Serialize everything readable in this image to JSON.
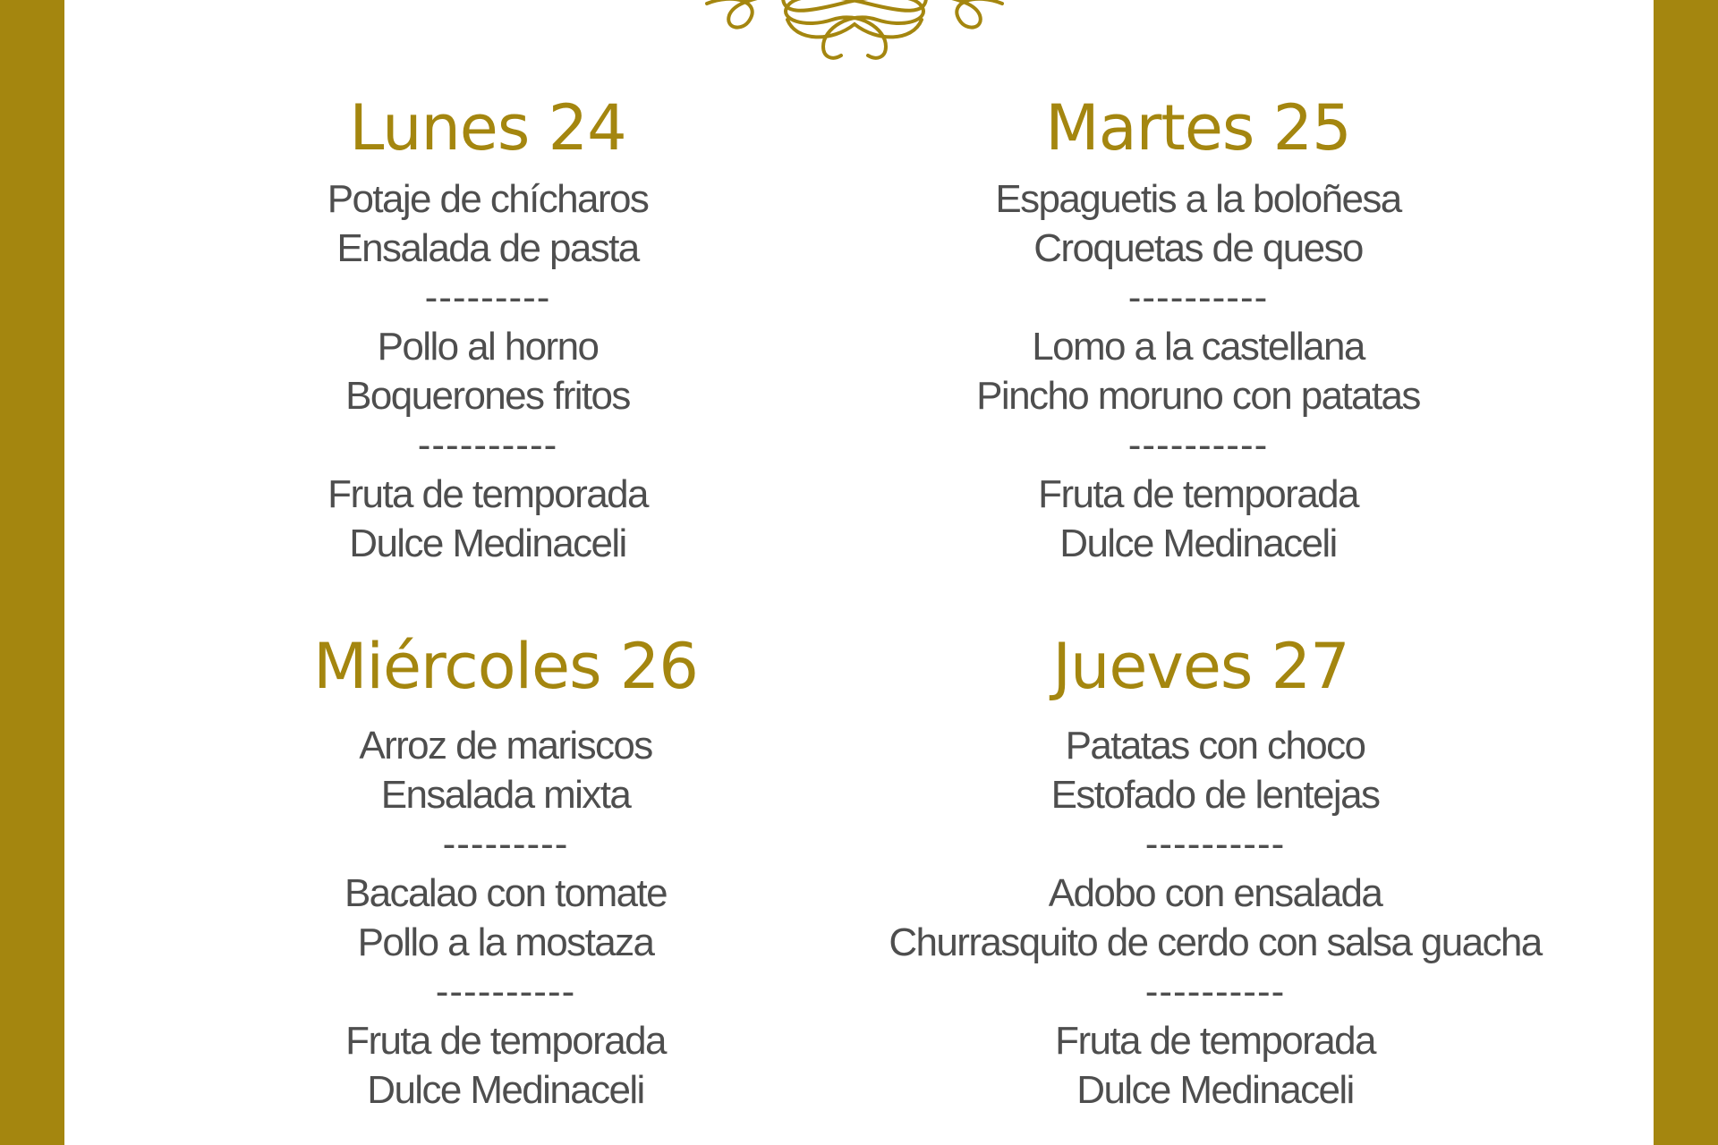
{
  "accent_color": "#A4860F",
  "ornament": "gold-flourish-ornament",
  "days": [
    {
      "title": "Lunes 24",
      "items": [
        "Potaje de chícharos",
        "Ensalada de pasta",
        "---------",
        "Pollo al horno",
        "Boquerones fritos",
        "----------",
        "Fruta de temporada",
        "Dulce Medinaceli"
      ]
    },
    {
      "title": "Martes 25",
      "items": [
        "Espaguetis a la boloñesa",
        "Croquetas de queso",
        "----------",
        "Lomo a la castellana",
        "Pincho moruno con patatas",
        "----------",
        "Fruta de temporada",
        "Dulce Medinaceli"
      ]
    },
    {
      "title": "Miércoles 26",
      "items": [
        "Arroz de mariscos",
        "Ensalada mixta",
        "---------",
        "Bacalao con tomate",
        "Pollo a la mostaza",
        "----------",
        "Fruta de temporada",
        "Dulce Medinaceli"
      ]
    },
    {
      "title": "Jueves 27",
      "items": [
        "Patatas con choco",
        "Estofado de lentejas",
        "----------",
        "Adobo con ensalada",
        "Churrasquito de cerdo con salsa guacha",
        "----------",
        "Fruta de temporada",
        "Dulce Medinaceli"
      ]
    }
  ]
}
